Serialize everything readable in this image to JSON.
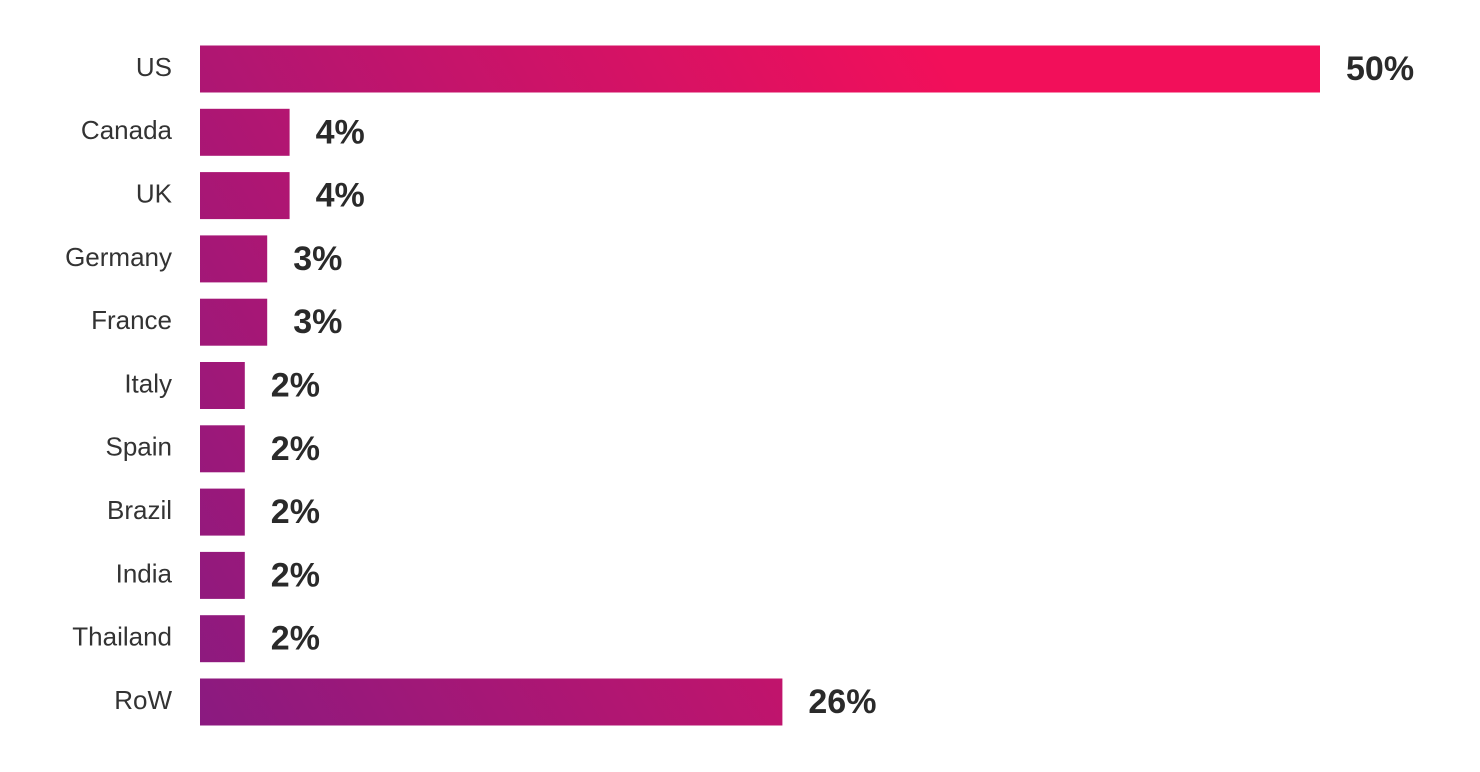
{
  "chart_data": {
    "type": "bar",
    "orientation": "horizontal",
    "categories": [
      "US",
      "Canada",
      "UK",
      "Germany",
      "France",
      "Italy",
      "Spain",
      "Brazil",
      "India",
      "Thailand",
      "RoW"
    ],
    "values": [
      50,
      4,
      4,
      3,
      3,
      2,
      2,
      2,
      2,
      2,
      26
    ],
    "value_labels": [
      "50%",
      "4%",
      "4%",
      "3%",
      "3%",
      "2%",
      "2%",
      "2%",
      "2%",
      "2%",
      "26%"
    ],
    "colors": [
      "#8a1a80",
      "#f20f5a"
    ]
  }
}
